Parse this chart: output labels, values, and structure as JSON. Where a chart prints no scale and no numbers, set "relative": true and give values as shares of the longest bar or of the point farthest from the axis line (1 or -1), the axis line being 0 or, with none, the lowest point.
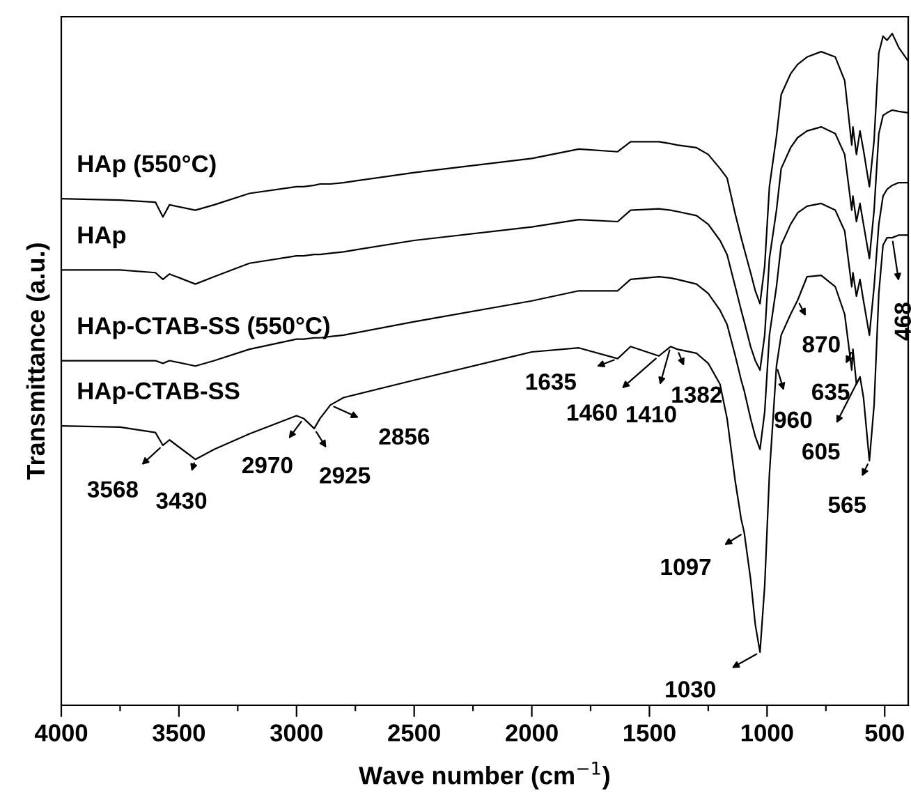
{
  "chart_data": {
    "type": "line",
    "relative": true,
    "xlabel": "Wave number (cm$^{−1}$)",
    "ylabel": "Transmittance (a.u.)",
    "x": [
      4000,
      3750,
      3600,
      3568,
      3540,
      3430,
      3350,
      3200,
      3000,
      2970,
      2925,
      2900,
      2856,
      2800,
      2500,
      2000,
      1800,
      1635,
      1580,
      1460,
      1410,
      1382,
      1300,
      1250,
      1200,
      1170,
      1135,
      1110,
      1097,
      1070,
      1050,
      1030,
      1010,
      990,
      960,
      940,
      900,
      870,
      830,
      770,
      710,
      670,
      640,
      635,
      620,
      605,
      590,
      565,
      545,
      525,
      507,
      490,
      468,
      440,
      400
    ],
    "xlim": [
      4000,
      400
    ],
    "xticks": [
      4000,
      {
        "value": 3750,
        "label": null
      },
      3500,
      {
        "value": 3250,
        "label": null
      },
      3000,
      {
        "value": 2750,
        "label": null
      },
      2500,
      {
        "value": 2250,
        "label": null
      },
      2000,
      {
        "value": 1750,
        "label": null
      },
      1500,
      {
        "value": 1250,
        "label": null
      },
      1000,
      {
        "value": 750,
        "label": null
      },
      500
    ],
    "series": [
      {
        "name": "HAp (550°C)",
        "color": "#000000",
        "values": [
          0.754,
          0.752,
          0.749,
          0.727,
          0.745,
          0.737,
          0.745,
          0.762,
          0.772,
          0.772,
          0.774,
          0.776,
          0.776,
          0.778,
          0.793,
          0.814,
          0.828,
          0.824,
          0.839,
          0.839,
          0.836,
          0.834,
          0.83,
          0.82,
          0.799,
          0.785,
          0.731,
          0.696,
          0.679,
          0.644,
          0.617,
          0.598,
          0.654,
          0.772,
          0.847,
          0.909,
          0.94,
          0.954,
          0.965,
          0.973,
          0.965,
          0.93,
          0.834,
          0.861,
          0.82,
          0.855,
          0.826,
          0.772,
          0.841,
          0.971,
          0.996,
          0.99,
          1.0,
          0.979,
          0.959
        ]
      },
      {
        "name": "HAp",
        "color": "#000000",
        "values": [
          0.648,
          0.648,
          0.644,
          0.634,
          0.642,
          0.627,
          0.638,
          0.658,
          0.669,
          0.669,
          0.671,
          0.671,
          0.673,
          0.675,
          0.692,
          0.712,
          0.723,
          0.72,
          0.737,
          0.739,
          0.737,
          0.735,
          0.729,
          0.716,
          0.692,
          0.671,
          0.623,
          0.588,
          0.571,
          0.534,
          0.513,
          0.499,
          0.551,
          0.665,
          0.737,
          0.799,
          0.83,
          0.845,
          0.855,
          0.861,
          0.851,
          0.82,
          0.737,
          0.758,
          0.72,
          0.747,
          0.716,
          0.665,
          0.737,
          0.851,
          0.878,
          0.882,
          0.886,
          0.884,
          0.882
        ]
      },
      {
        "name": "HAp-CTAB-SS (550°C)",
        "color": "#000000",
        "values": [
          0.513,
          0.513,
          0.513,
          0.509,
          0.513,
          0.505,
          0.513,
          0.53,
          0.545,
          0.545,
          0.547,
          0.547,
          0.549,
          0.551,
          0.571,
          0.602,
          0.617,
          0.617,
          0.634,
          0.638,
          0.636,
          0.634,
          0.627,
          0.613,
          0.588,
          0.567,
          0.52,
          0.484,
          0.468,
          0.427,
          0.4,
          0.381,
          0.437,
          0.551,
          0.623,
          0.685,
          0.716,
          0.733,
          0.743,
          0.747,
          0.737,
          0.706,
          0.623,
          0.644,
          0.609,
          0.634,
          0.602,
          0.551,
          0.623,
          0.716,
          0.758,
          0.768,
          0.774,
          0.778,
          0.778
        ]
      },
      {
        "name": "HAp-CTAB-SS",
        "color": "#000000",
        "values": [
          0.416,
          0.414,
          0.406,
          0.387,
          0.395,
          0.366,
          0.381,
          0.404,
          0.431,
          0.427,
          0.412,
          0.427,
          0.447,
          0.458,
          0.484,
          0.526,
          0.532,
          0.516,
          0.534,
          0.52,
          0.534,
          0.53,
          0.524,
          0.509,
          0.478,
          0.427,
          0.333,
          0.277,
          0.257,
          0.188,
          0.12,
          0.079,
          0.178,
          0.344,
          0.505,
          0.551,
          0.582,
          0.603,
          0.638,
          0.64,
          0.623,
          0.582,
          0.499,
          0.53,
          0.478,
          0.489,
          0.458,
          0.364,
          0.447,
          0.613,
          0.685,
          0.696,
          0.696,
          0.7,
          0.7
        ]
      }
    ],
    "annotations": [
      {
        "text": "3568",
        "x": 3568,
        "y": 0.387
      },
      {
        "text": "3430",
        "x": 3430,
        "y": 0.366
      },
      {
        "text": "2970",
        "x": 2970,
        "y": 0.427
      },
      {
        "text": "2925",
        "x": 2925,
        "y": 0.412
      },
      {
        "text": "2856",
        "x": 2856,
        "y": 0.447
      },
      {
        "text": "1635",
        "x": 1635,
        "y": 0.516
      },
      {
        "text": "1460",
        "x": 1460,
        "y": 0.52
      },
      {
        "text": "1410",
        "x": 1410,
        "y": 0.534
      },
      {
        "text": "1382",
        "x": 1382,
        "y": 0.53
      },
      {
        "text": "1097",
        "x": 1097,
        "y": 0.257
      },
      {
        "text": "1030",
        "x": 1030,
        "y": 0.079
      },
      {
        "text": "960",
        "x": 960,
        "y": 0.505
      },
      {
        "text": "870",
        "x": 870,
        "y": 0.603
      },
      {
        "text": "635",
        "x": 635,
        "y": 0.53
      },
      {
        "text": "605",
        "x": 605,
        "y": 0.489
      },
      {
        "text": "565",
        "x": 565,
        "y": 0.364
      },
      {
        "text": "468",
        "x": 468,
        "y": 0.696
      }
    ],
    "grid": false,
    "legend": false,
    "marker": "none",
    "line_style": "solid"
  }
}
